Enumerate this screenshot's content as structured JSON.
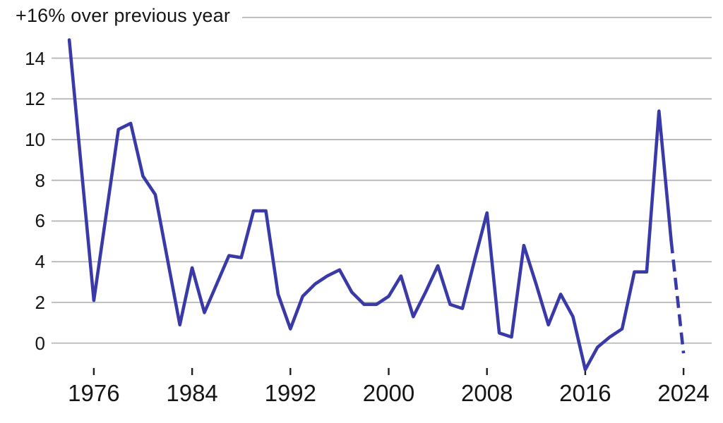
{
  "chart_data": {
    "type": "line",
    "annotation": "+16% over previous year",
    "annotation_value": 16,
    "unit": "percent change over previous year",
    "years": [
      1974,
      1975,
      1976,
      1977,
      1978,
      1979,
      1980,
      1981,
      1982,
      1983,
      1984,
      1985,
      1986,
      1987,
      1988,
      1989,
      1990,
      1991,
      1992,
      1993,
      1994,
      1995,
      1996,
      1997,
      1998,
      1999,
      2000,
      2001,
      2002,
      2003,
      2004,
      2005,
      2006,
      2007,
      2008,
      2009,
      2010,
      2011,
      2012,
      2013,
      2014,
      2015,
      2016,
      2017,
      2018,
      2019,
      2020,
      2021,
      2022,
      2023
    ],
    "values": [
      14.9,
      8.5,
      2.1,
      6.3,
      10.5,
      10.8,
      8.2,
      7.3,
      4.1,
      0.9,
      3.7,
      1.5,
      2.9,
      4.3,
      4.2,
      6.5,
      6.5,
      2.4,
      0.7,
      2.3,
      2.9,
      3.3,
      3.6,
      2.5,
      1.9,
      1.9,
      2.3,
      3.3,
      1.3,
      2.5,
      3.8,
      1.9,
      1.7,
      4.1,
      6.4,
      0.5,
      0.3,
      4.8,
      2.9,
      0.9,
      2.4,
      1.3,
      -1.3,
      -0.2,
      0.3,
      0.7,
      3.5,
      3.5,
      11.4,
      5.0
    ],
    "forecast": {
      "style": "dashed",
      "years": [
        2023,
        2024
      ],
      "values": [
        5.0,
        -0.5
      ]
    },
    "x_ticks": [
      1976,
      1984,
      1992,
      2000,
      2008,
      2016,
      2024
    ],
    "y_ticks": [
      0,
      2,
      4,
      6,
      8,
      10,
      12,
      14
    ],
    "ylim": [
      -2.5,
      16
    ],
    "xlim": [
      1973.5,
      2024.5
    ],
    "grid": true,
    "legend": false,
    "colors": {
      "line": "#3939a8",
      "grid": "#b3b3b3",
      "tick": "#1f1f1f",
      "text": "#151515",
      "background": "#ffffff"
    }
  }
}
